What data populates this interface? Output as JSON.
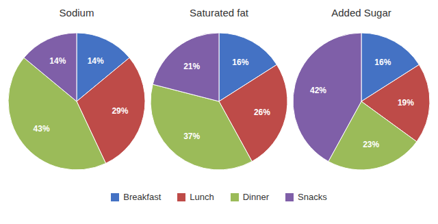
{
  "chart_data": [
    {
      "type": "pie",
      "title": "Sodium",
      "categories": [
        "Breakfast",
        "Lunch",
        "Dinner",
        "Snacks"
      ],
      "values": [
        14,
        29,
        43,
        14
      ],
      "value_labels": [
        "14%",
        "29%",
        "43%",
        "14%"
      ],
      "colors": [
        "#4472C4",
        "#BE4B48",
        "#9BBB59",
        "#7F5FA8"
      ],
      "data_labels": true,
      "legend": "bottom"
    },
    {
      "type": "pie",
      "title": "Saturated fat",
      "categories": [
        "Breakfast",
        "Lunch",
        "Dinner",
        "Snacks"
      ],
      "values": [
        16,
        26,
        37,
        21
      ],
      "value_labels": [
        "16%",
        "26%",
        "37%",
        "21%"
      ],
      "colors": [
        "#4472C4",
        "#BE4B48",
        "#9BBB59",
        "#7F5FA8"
      ],
      "data_labels": true,
      "legend": "bottom"
    },
    {
      "type": "pie",
      "title": "Added Sugar",
      "categories": [
        "Breakfast",
        "Lunch",
        "Dinner",
        "Snacks"
      ],
      "values": [
        16,
        19,
        23,
        42
      ],
      "value_labels": [
        "16%",
        "19%",
        "23%",
        "42%"
      ],
      "colors": [
        "#4472C4",
        "#BE4B48",
        "#9BBB59",
        "#7F5FA8"
      ],
      "data_labels": true,
      "legend": "bottom"
    }
  ]
}
